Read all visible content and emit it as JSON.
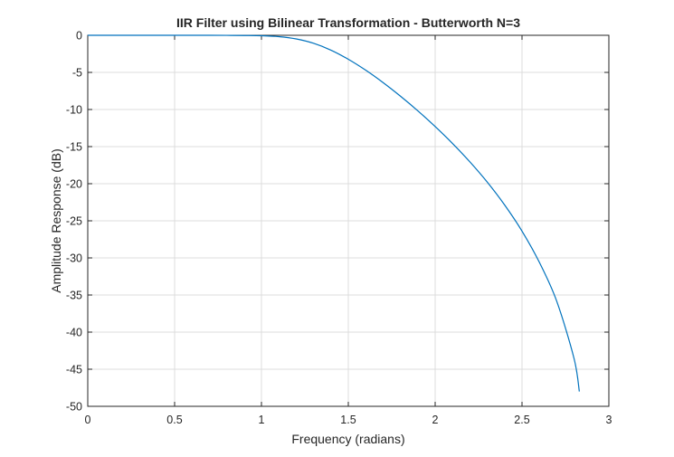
{
  "chart_data": {
    "type": "line",
    "title": "IIR Filter using Bilinear Transformation - Butterworth N=3",
    "xlabel": "Frequency (radians)",
    "ylabel": "Amplitude Response (dB)",
    "xlim": [
      0,
      3
    ],
    "ylim": [
      -50,
      0
    ],
    "xticks": [
      0,
      0.5,
      1,
      1.5,
      2,
      2.5,
      3
    ],
    "xtick_labels": [
      "0",
      "0.5",
      "1",
      "1.5",
      "2",
      "2.5",
      "3"
    ],
    "yticks": [
      0,
      -5,
      -10,
      -15,
      -20,
      -25,
      -30,
      -35,
      -40,
      -45,
      -50
    ],
    "ytick_labels": [
      "0",
      "-5",
      "-10",
      "-15",
      "-20",
      "-25",
      "-30",
      "-35",
      "-40",
      "-45",
      "-50"
    ],
    "grid": true,
    "series": [
      {
        "color": "#0072BD",
        "x": [
          0,
          0.1,
          0.2,
          0.3,
          0.4,
          0.5,
          0.6,
          0.7,
          0.8,
          0.9,
          1.0,
          1.1,
          1.2,
          1.3,
          1.4,
          1.5,
          1.6,
          1.7,
          1.8,
          1.9,
          2.0,
          2.1,
          2.2,
          2.3,
          2.4,
          2.5,
          2.6,
          2.7,
          2.8,
          2.83
        ],
        "y": [
          0,
          0,
          0,
          0,
          0,
          0,
          0,
          0,
          -0.01,
          -0.03,
          -0.06,
          -0.18,
          -0.49,
          -1.08,
          -2.0,
          -3.23,
          -4.7,
          -6.37,
          -8.2,
          -10.17,
          -12.3,
          -14.58,
          -17.06,
          -19.79,
          -22.87,
          -26.39,
          -30.6,
          -35.85,
          -43.6,
          -48.0
        ]
      }
    ]
  }
}
